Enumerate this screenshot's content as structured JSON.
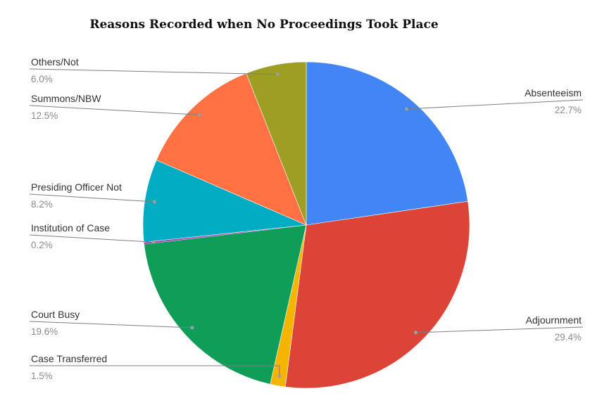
{
  "chart_data": {
    "type": "pie",
    "title": "Reasons Recorded when No Proceedings Took Place",
    "slices": [
      {
        "label": "Absenteeism",
        "value": 22.7,
        "pct_label": "22.7%",
        "color": "#4285F4"
      },
      {
        "label": "Adjournment",
        "value": 29.4,
        "pct_label": "29.4%",
        "color": "#DB4437"
      },
      {
        "label": "Case Transferred",
        "value": 1.5,
        "pct_label": "1.5%",
        "color": "#F4B400"
      },
      {
        "label": "Court Busy",
        "value": 19.6,
        "pct_label": "19.6%",
        "color": "#0F9D58"
      },
      {
        "label": "Institution of Case",
        "value": 0.2,
        "pct_label": "0.2%",
        "color": "#AB47BC"
      },
      {
        "label": "Presiding Officer Not",
        "value": 8.2,
        "pct_label": "8.2%",
        "color": "#00ACC1"
      },
      {
        "label": "Summons/NBW",
        "value": 12.5,
        "pct_label": "12.5%",
        "color": "#FF7043"
      },
      {
        "label": "Others/Not",
        "value": 6.0,
        "pct_label": "6.0%",
        "color": "#9E9D24"
      }
    ]
  }
}
